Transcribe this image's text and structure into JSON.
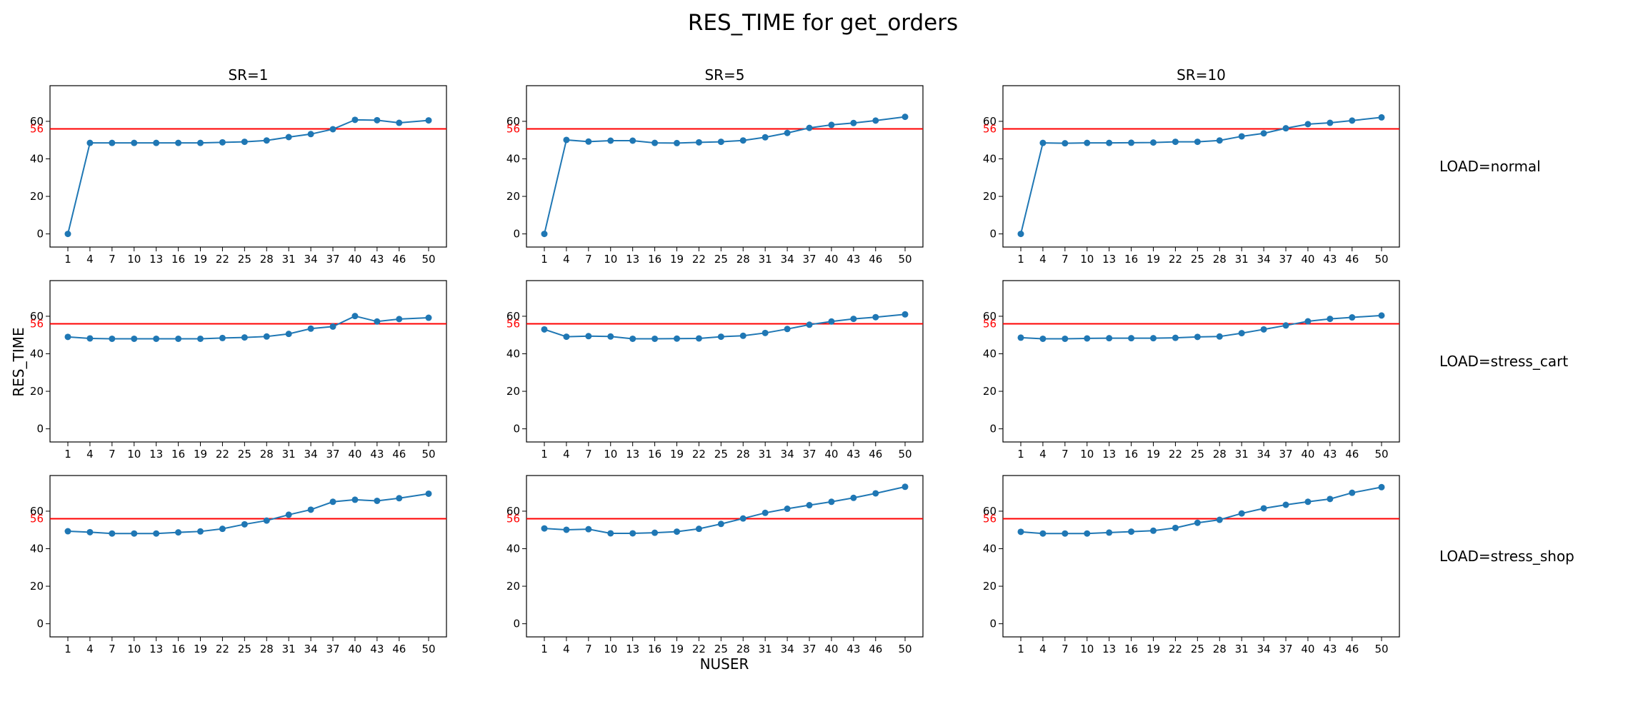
{
  "figure": {
    "title": "RES_TIME for get_orders",
    "xlabel": "NUSER",
    "ylabel": "RES_TIME"
  },
  "chart_data": {
    "type": "line",
    "title": "RES_TIME for get_orders",
    "xlabel": "NUSER",
    "ylabel": "RES_TIME",
    "x": [
      1,
      4,
      7,
      10,
      13,
      16,
      19,
      22,
      25,
      28,
      31,
      34,
      37,
      40,
      43,
      46,
      50
    ],
    "ylim": [
      -7,
      79
    ],
    "yticks": [
      0,
      20,
      40,
      60
    ],
    "grid": false,
    "reference_line": {
      "value": 56,
      "label": "56",
      "color": "#ff0000"
    },
    "series_color": "#1f77b4",
    "columns": [
      "SR=1",
      "SR=5",
      "SR=10"
    ],
    "rows": [
      "LOAD=normal",
      "LOAD=stress_cart",
      "LOAD=stress_shop"
    ],
    "panels": [
      {
        "row": "LOAD=normal",
        "column": "SR=1",
        "values": [
          0,
          48.5,
          48.5,
          48.5,
          48.5,
          48.5,
          48.5,
          48.8,
          49.1,
          49.8,
          51.6,
          53.2,
          55.8,
          60.8,
          60.6,
          59.2,
          60.5
        ]
      },
      {
        "row": "LOAD=normal",
        "column": "SR=5",
        "values": [
          0,
          50.1,
          49.2,
          49.7,
          49.7,
          48.5,
          48.4,
          48.8,
          49.1,
          49.8,
          51.5,
          53.8,
          56.5,
          58.1,
          59.1,
          60.4,
          62.4
        ]
      },
      {
        "row": "LOAD=normal",
        "column": "SR=10",
        "values": [
          0,
          48.5,
          48.3,
          48.5,
          48.5,
          48.6,
          48.7,
          49.1,
          49.1,
          49.8,
          52.0,
          53.6,
          56.3,
          58.5,
          59.2,
          60.4,
          62.1
        ]
      },
      {
        "row": "LOAD=stress_cart",
        "column": "SR=1",
        "values": [
          49.0,
          48.2,
          48.0,
          48.0,
          48.0,
          48.0,
          48.0,
          48.4,
          48.7,
          49.2,
          50.6,
          53.4,
          54.5,
          60.1,
          57.2,
          58.5,
          59.2
        ]
      },
      {
        "row": "LOAD=stress_cart",
        "column": "SR=5",
        "values": [
          53.0,
          49.1,
          49.4,
          49.2,
          48.0,
          48.0,
          48.1,
          48.2,
          49.1,
          49.6,
          51.1,
          53.2,
          55.5,
          57.2,
          58.6,
          59.5,
          61.0
        ]
      },
      {
        "row": "LOAD=stress_cart",
        "column": "SR=10",
        "values": [
          48.6,
          48.0,
          48.0,
          48.2,
          48.3,
          48.3,
          48.3,
          48.5,
          49.0,
          49.2,
          51.0,
          53.0,
          55.1,
          57.3,
          58.6,
          59.4,
          60.4
        ]
      },
      {
        "row": "LOAD=stress_shop",
        "column": "SR=1",
        "values": [
          49.3,
          48.8,
          48.1,
          48.1,
          48.1,
          48.7,
          49.2,
          50.6,
          53.0,
          55.0,
          58.1,
          60.8,
          65.0,
          66.1,
          65.5,
          66.9,
          69.3
        ]
      },
      {
        "row": "LOAD=stress_shop",
        "column": "SR=5",
        "values": [
          50.8,
          50.1,
          50.4,
          48.2,
          48.2,
          48.5,
          49.1,
          50.6,
          53.2,
          56.1,
          59.1,
          61.3,
          63.2,
          65.0,
          67.1,
          69.5,
          73.0
        ]
      },
      {
        "row": "LOAD=stress_shop",
        "column": "SR=10",
        "values": [
          49.0,
          48.1,
          48.1,
          48.1,
          48.6,
          49.1,
          49.6,
          51.1,
          53.8,
          55.4,
          58.8,
          61.5,
          63.4,
          65.0,
          66.5,
          69.8,
          72.8
        ]
      }
    ]
  }
}
